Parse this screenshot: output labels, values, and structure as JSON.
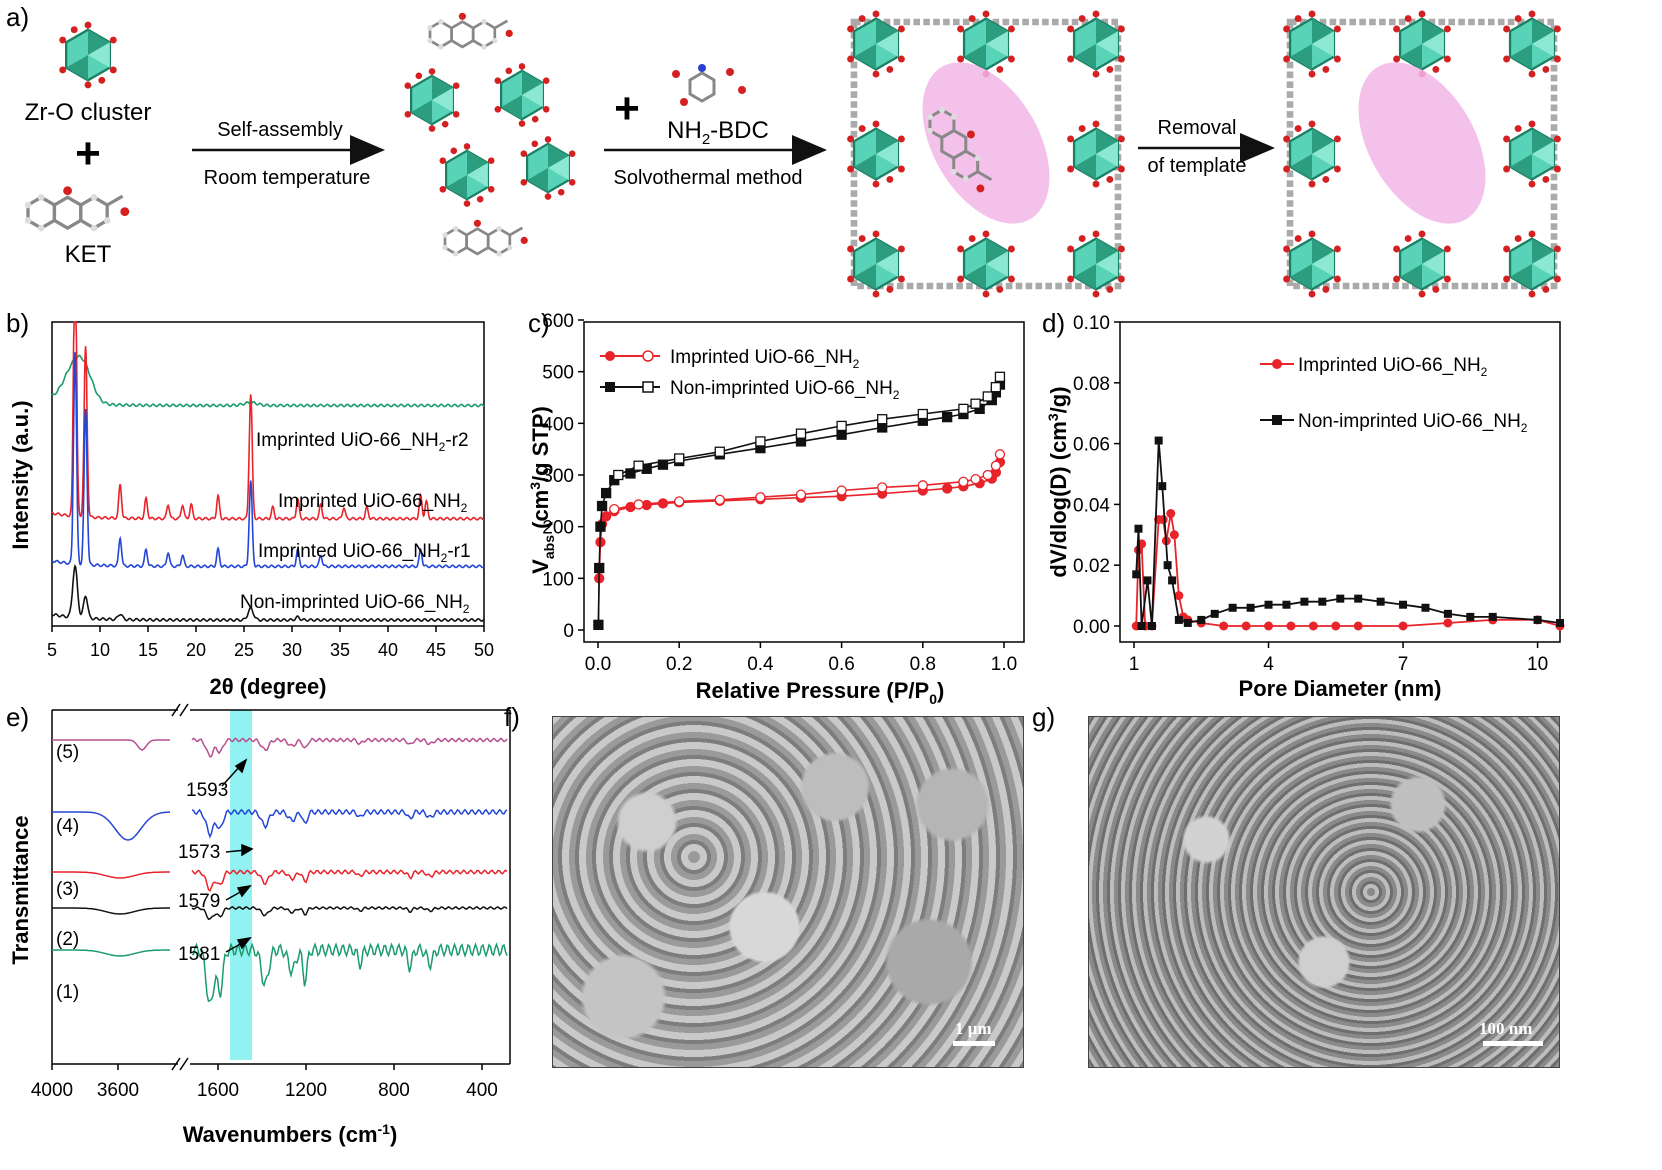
{
  "panel_labels": {
    "a": "a)",
    "b": "b)",
    "c": "c)",
    "d": "d)",
    "e": "e)",
    "f": "f)",
    "g": "g)"
  },
  "scheme": {
    "zr_label": "Zr-O cluster",
    "plus1": "+",
    "ket_label": "KET",
    "arrow1_top": "Self-assembly",
    "arrow1_bottom": "Room temperature",
    "plus2": "+",
    "bdc_label": "NH2-BDC",
    "arrow2_bottom": "Solvothermal method",
    "arrow3_top": "Removal",
    "arrow3_bottom": "of template"
  },
  "colors": {
    "green": "#1a9b6c",
    "red": "#e8232a",
    "blue": "#2346d6",
    "black": "#111111",
    "purple": "#b8508f",
    "cyan": "#7ff0ef",
    "pink": "#f2b6e8",
    "teal": "#58d3b7"
  },
  "chart_data": [
    {
      "id": "b",
      "type": "line",
      "xlabel": "2θ (degree)",
      "ylabel": "Intensity (a.u.)",
      "xlim": [
        5,
        50
      ],
      "xticks": [
        "5",
        "10",
        "15",
        "20",
        "25",
        "30",
        "35",
        "40",
        "45",
        "50"
      ],
      "series": [
        {
          "name": "Imprinted UiO-66_NH2-r2",
          "color": "#1a9b6c",
          "offset": 0.72,
          "peaks": [
            [
              7.4,
              0.13,
              1.6
            ],
            [
              8.5,
              0.06,
              1.2
            ],
            [
              25.7,
              0.01,
              1
            ]
          ]
        },
        {
          "name": "Imprinted UiO-66_NH2",
          "color": "#e8232a",
          "offset": 0.34,
          "peaks": [
            [
              7.4,
              0.98,
              0.22
            ],
            [
              8.5,
              0.6,
              0.22
            ],
            [
              12.1,
              0.12,
              0.2
            ],
            [
              14.8,
              0.07,
              0.2
            ],
            [
              17.1,
              0.05,
              0.2
            ],
            [
              18.6,
              0.05,
              0.2
            ],
            [
              19.5,
              0.05,
              0.2
            ],
            [
              22.3,
              0.08,
              0.2
            ],
            [
              25.7,
              0.44,
              0.22
            ],
            [
              28.0,
              0.04,
              0.2
            ],
            [
              30.6,
              0.07,
              0.2
            ],
            [
              33.0,
              0.05,
              0.2
            ],
            [
              35.4,
              0.04,
              0.2
            ],
            [
              37.8,
              0.04,
              0.2
            ],
            [
              43.4,
              0.08,
              0.2
            ],
            [
              44.0,
              0.06,
              0.2
            ]
          ]
        },
        {
          "name": "Imprinted UiO-66_NH2-r1",
          "color": "#2346d6",
          "offset": 0.18,
          "peaks": [
            [
              7.4,
              0.75,
              0.22
            ],
            [
              8.5,
              0.55,
              0.22
            ],
            [
              12.1,
              0.1,
              0.2
            ],
            [
              14.8,
              0.06,
              0.2
            ],
            [
              17.1,
              0.05,
              0.2
            ],
            [
              18.6,
              0.04,
              0.2
            ],
            [
              22.3,
              0.06,
              0.2
            ],
            [
              25.7,
              0.3,
              0.22
            ],
            [
              30.6,
              0.06,
              0.2
            ],
            [
              33.0,
              0.04,
              0.2
            ],
            [
              43.4,
              0.06,
              0.2
            ]
          ]
        },
        {
          "name": "Non-imprinted UiO-66_NH2",
          "color": "#111111",
          "offset": 0.0,
          "peaks": [
            [
              7.4,
              0.18,
              0.35
            ],
            [
              8.5,
              0.08,
              0.3
            ],
            [
              12.1,
              0.02,
              0.3
            ],
            [
              25.7,
              0.04,
              0.4
            ],
            [
              30.6,
              0.01,
              0.3
            ]
          ]
        }
      ],
      "series_labels": [
        "Imprinted UiO-66_NH",
        "-r2",
        "Imprinted UiO-66_NH",
        "Imprinted UiO-66_NH",
        "-r1",
        "Non-imprinted UiO-66_NH",
        "2"
      ]
    },
    {
      "id": "c",
      "type": "line",
      "xlabel": "Relative Pressure (P/P",
      "xlabel_sub": "0",
      "xlabel_end": ")",
      "ylabel": "V",
      "ylabel_sub": "abs",
      "ylabel_rest": " (cm",
      "ylabel_sup": "3",
      "ylabel_end": "/g STP)",
      "xlim": [
        0,
        1
      ],
      "ylim": [
        0,
        600
      ],
      "xticks": [
        "0.0",
        "0.2",
        "0.4",
        "0.6",
        "0.8",
        "1.0"
      ],
      "yticks": [
        "0",
        "100",
        "200",
        "300",
        "400",
        "500",
        "600"
      ],
      "legend": [
        "Imprinted UiO-66_NH",
        "Non-imprinted UiO-66_NH"
      ],
      "series": [
        {
          "name": "Imprinted UiO-66_NH2",
          "color": "#e8232a",
          "adsorption": [
            [
              0.001,
              10
            ],
            [
              0.003,
              100
            ],
            [
              0.006,
              170
            ],
            [
              0.01,
              205
            ],
            [
              0.02,
              220
            ],
            [
              0.04,
              230
            ],
            [
              0.08,
              238
            ],
            [
              0.12,
              242
            ],
            [
              0.16,
              245
            ],
            [
              0.2,
              247
            ],
            [
              0.3,
              250
            ],
            [
              0.4,
              253
            ],
            [
              0.5,
              256
            ],
            [
              0.6,
              259
            ],
            [
              0.7,
              264
            ],
            [
              0.8,
              270
            ],
            [
              0.86,
              274
            ],
            [
              0.9,
              278
            ],
            [
              0.94,
              284
            ],
            [
              0.97,
              293
            ],
            [
              0.98,
              305
            ],
            [
              0.99,
              325
            ]
          ],
          "desorption": [
            [
              0.99,
              340
            ],
            [
              0.98,
              318
            ],
            [
              0.96,
              300
            ],
            [
              0.93,
              292
            ],
            [
              0.9,
              287
            ],
            [
              0.8,
              280
            ],
            [
              0.7,
              276
            ],
            [
              0.6,
              270
            ],
            [
              0.5,
              262
            ],
            [
              0.4,
              257
            ],
            [
              0.3,
              252
            ],
            [
              0.2,
              249
            ],
            [
              0.1,
              243
            ],
            [
              0.04,
              234
            ]
          ]
        },
        {
          "name": "Non-imprinted UiO-66_NH2",
          "color": "#111111",
          "adsorption": [
            [
              0.001,
              10
            ],
            [
              0.003,
              120
            ],
            [
              0.006,
              200
            ],
            [
              0.01,
              240
            ],
            [
              0.02,
              265
            ],
            [
              0.04,
              290
            ],
            [
              0.08,
              303
            ],
            [
              0.12,
              312
            ],
            [
              0.16,
              320
            ],
            [
              0.2,
              327
            ],
            [
              0.3,
              340
            ],
            [
              0.4,
              352
            ],
            [
              0.5,
              365
            ],
            [
              0.6,
              378
            ],
            [
              0.7,
              392
            ],
            [
              0.8,
              405
            ],
            [
              0.86,
              412
            ],
            [
              0.9,
              418
            ],
            [
              0.94,
              428
            ],
            [
              0.97,
              445
            ],
            [
              0.98,
              460
            ],
            [
              0.99,
              475
            ]
          ],
          "desorption": [
            [
              0.99,
              490
            ],
            [
              0.98,
              470
            ],
            [
              0.96,
              452
            ],
            [
              0.93,
              438
            ],
            [
              0.9,
              428
            ],
            [
              0.8,
              418
            ],
            [
              0.7,
              408
            ],
            [
              0.6,
              395
            ],
            [
              0.5,
              380
            ],
            [
              0.4,
              365
            ],
            [
              0.3,
              345
            ],
            [
              0.2,
              332
            ],
            [
              0.1,
              318
            ],
            [
              0.05,
              300
            ]
          ]
        }
      ]
    },
    {
      "id": "d",
      "type": "line",
      "xlabel": "Pore Diameter (nm)",
      "ylabel": "dV/dlog(D) (cm",
      "ylabel_sup": "3",
      "ylabel_end": "/g)",
      "xlim": [
        1,
        10.5
      ],
      "ylim": [
        0,
        0.1
      ],
      "xticks": [
        "1",
        "4",
        "7",
        "10"
      ],
      "yticks": [
        "0.00",
        "0.02",
        "0.04",
        "0.06",
        "0.08",
        "0.10"
      ],
      "legend": [
        "Imprinted UiO-66_NH",
        "Non-imprinted UiO-66_NH"
      ],
      "series": [
        {
          "name": "Imprinted UiO-66_NH2",
          "color": "#e8232a",
          "points": [
            [
              1.05,
              0.0
            ],
            [
              1.1,
              0.025
            ],
            [
              1.17,
              0.027
            ],
            [
              1.25,
              0.0
            ],
            [
              1.4,
              0.0
            ],
            [
              1.55,
              0.035
            ],
            [
              1.65,
              0.035
            ],
            [
              1.72,
              0.028
            ],
            [
              1.82,
              0.037
            ],
            [
              1.9,
              0.03
            ],
            [
              2.0,
              0.01
            ],
            [
              2.1,
              0.003
            ],
            [
              2.2,
              0.002
            ],
            [
              2.5,
              0.001
            ],
            [
              3,
              0.0
            ],
            [
              3.5,
              0.0
            ],
            [
              4,
              0.0
            ],
            [
              4.5,
              0.0
            ],
            [
              5,
              0.0
            ],
            [
              5.5,
              0.0
            ],
            [
              6,
              0.0
            ],
            [
              7,
              0.0
            ],
            [
              8,
              0.001
            ],
            [
              9,
              0.002
            ],
            [
              10,
              0.002
            ],
            [
              10.5,
              0.0
            ]
          ]
        },
        {
          "name": "Non-imprinted UiO-66_NH2",
          "color": "#111111",
          "points": [
            [
              1.05,
              0.017
            ],
            [
              1.1,
              0.032
            ],
            [
              1.17,
              0.0
            ],
            [
              1.3,
              0.015
            ],
            [
              1.4,
              0.0
            ],
            [
              1.55,
              0.061
            ],
            [
              1.63,
              0.046
            ],
            [
              1.75,
              0.02
            ],
            [
              1.85,
              0.015
            ],
            [
              2.0,
              0.002
            ],
            [
              2.2,
              0.001
            ],
            [
              2.5,
              0.002
            ],
            [
              2.8,
              0.004
            ],
            [
              3.2,
              0.006
            ],
            [
              3.6,
              0.006
            ],
            [
              4.0,
              0.007
            ],
            [
              4.4,
              0.007
            ],
            [
              4.8,
              0.008
            ],
            [
              5.2,
              0.008
            ],
            [
              5.6,
              0.009
            ],
            [
              6.0,
              0.009
            ],
            [
              6.5,
              0.008
            ],
            [
              7.0,
              0.007
            ],
            [
              7.5,
              0.006
            ],
            [
              8.0,
              0.004
            ],
            [
              8.5,
              0.003
            ],
            [
              9.0,
              0.003
            ],
            [
              10.0,
              0.002
            ],
            [
              10.5,
              0.001
            ]
          ]
        }
      ]
    },
    {
      "id": "e",
      "type": "line",
      "xlabel": "Wavenumbers (cm",
      "xlabel_sup": "-1",
      "xlabel_end": ")",
      "ylabel": "Transmittance",
      "xticks": [
        "4000",
        "3600",
        "1600",
        "1200",
        "800",
        "400"
      ],
      "trace_labels": [
        "(5)",
        "(4)",
        "(3)",
        "(2)",
        "(1)"
      ],
      "annotations": [
        "1593",
        "1573",
        "1579",
        "1581"
      ],
      "series": [
        {
          "name": "(5)",
          "color": "#b8508f"
        },
        {
          "name": "(4)",
          "color": "#2346d6"
        },
        {
          "name": "(3)",
          "color": "#e8232a"
        },
        {
          "name": "(2)",
          "color": "#111111"
        },
        {
          "name": "(1)",
          "color": "#1a9b6c"
        }
      ]
    }
  ],
  "sem": {
    "f_scale": "1 μm",
    "g_scale": "100 nm"
  }
}
